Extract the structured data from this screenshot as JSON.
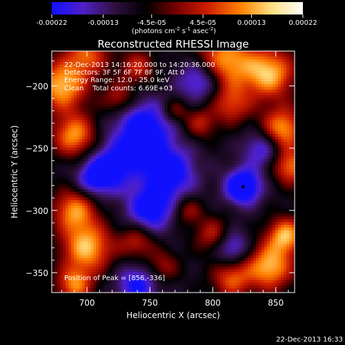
{
  "colorbar": {
    "tick_labels": [
      "-0.00022",
      "-0.00013",
      "-4.5e-05",
      "4.5e-05",
      "0.00013",
      "0.00022"
    ],
    "tick_values": [
      -0.00022,
      -0.00013,
      -4.5e-05,
      4.5e-05,
      0.00013,
      0.00022
    ],
    "range": [
      -0.00022,
      0.00022
    ],
    "units": "(photons cm-2 s-1 asec-2)",
    "colors": [
      "#1010ff",
      "#5020c8",
      "#301040",
      "#000000",
      "#7a0000",
      "#d02000",
      "#ff8000",
      "#ffe080",
      "#ffffff"
    ]
  },
  "chart_data": {
    "type": "heatmap",
    "title": "Reconstructed RHESSI Image",
    "xlabel": "Heliocentric X (arcsec)",
    "ylabel": "Heliocentric Y (arcsec)",
    "xlim": [
      672,
      865
    ],
    "ylim": [
      -366,
      -172
    ],
    "x_ticks": [
      700,
      750,
      800,
      850
    ],
    "y_ticks": [
      -200,
      -250,
      -300,
      -350
    ],
    "x_tick_labels": [
      "700",
      "750",
      "800",
      "850"
    ],
    "y_tick_labels": [
      "−200",
      "−250",
      "−300",
      "−350"
    ],
    "annotations": [
      "22-Dec-2013 14:16:20.000 to 14:20:36.000",
      "Detectors: 3F 5F 6F 7F 8F 9F, Att 0",
      "Energy Range: 12.0 - 25.0 keV",
      "Clean    Total counts: 6.69E+03"
    ],
    "peak_label": "Position of Peak = [856,-336]",
    "peak": [
      856,
      -336
    ],
    "min_marker": [
      824,
      -281
    ]
  },
  "footer_timestamp": "22-Dec-2013 16:33"
}
